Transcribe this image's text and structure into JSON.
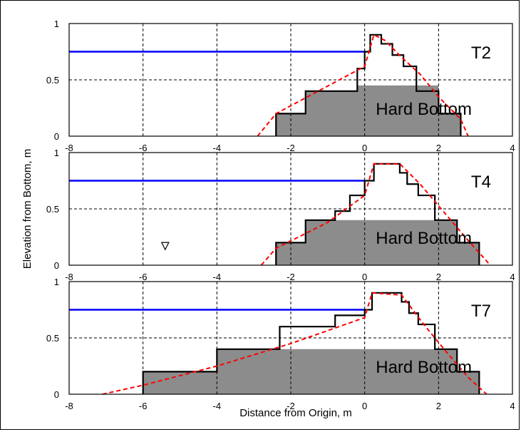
{
  "chart_data": {
    "type": "line",
    "xlabel": "Distance from Origin, m",
    "ylabel": "Elevation from Bottom, m",
    "xlim": [
      -8,
      4
    ],
    "ylim": [
      0,
      1
    ],
    "xticks": [
      "-8",
      "-6",
      "-4",
      "-2",
      "0",
      "2",
      "4"
    ],
    "yticks": [
      "0",
      "0.5",
      "1"
    ],
    "grid": "dashed",
    "colors": {
      "water_level": "#0000ff",
      "profile": "#000000",
      "fit": "#ff0000",
      "hard_bottom": "#8c8c8c"
    },
    "panels": [
      {
        "label": "T2",
        "hard_bottom_label": "Hard Bottom",
        "water_level": {
          "x": [
            -8,
            0
          ],
          "y": [
            0.75,
            0.75
          ]
        },
        "hard_bottom": {
          "x": [
            -2.4,
            -1.6,
            -1.6,
            -0.2,
            -0.2,
            2.0,
            2.0,
            2.6,
            2.6
          ],
          "y": [
            0.2,
            0.2,
            0.4,
            0.4,
            0.45,
            0.45,
            0.2,
            0.2,
            0
          ]
        },
        "profile": {
          "x": [
            -2.4,
            -2.4,
            -1.6,
            -1.6,
            -0.2,
            -0.2,
            0.0,
            0.0,
            0.15,
            0.15,
            0.45,
            0.45,
            0.75,
            0.75,
            1.05,
            1.05,
            1.4,
            1.4,
            2.0,
            2.0,
            2.6,
            2.6
          ],
          "y": [
            0,
            0.2,
            0.2,
            0.4,
            0.4,
            0.6,
            0.6,
            0.75,
            0.75,
            0.9,
            0.9,
            0.82,
            0.82,
            0.72,
            0.72,
            0.62,
            0.62,
            0.4,
            0.4,
            0.2,
            0.2,
            0
          ]
        },
        "fit": {
          "x": [
            -2.9,
            -2.4,
            0.0,
            0.25,
            0.55,
            1.0,
            1.5,
            2.0,
            2.6,
            2.8
          ],
          "y": [
            0,
            0.2,
            0.62,
            0.9,
            0.85,
            0.7,
            0.55,
            0.35,
            0.15,
            0
          ]
        },
        "triangle": false
      },
      {
        "label": "T4",
        "hard_bottom_label": "Hard Bottom",
        "water_level": {
          "x": [
            -8,
            0
          ],
          "y": [
            0.75,
            0.75
          ]
        },
        "hard_bottom": {
          "x": [
            -2.4,
            -1.6,
            -1.6,
            1.9,
            1.9,
            2.5,
            2.5,
            3.1,
            3.1
          ],
          "y": [
            0.2,
            0.2,
            0.4,
            0.4,
            0.4,
            0.4,
            0.2,
            0.2,
            0
          ]
        },
        "profile": {
          "x": [
            -2.4,
            -2.4,
            -1.6,
            -1.6,
            -0.8,
            -0.8,
            -0.4,
            -0.4,
            0.0,
            0.0,
            0.25,
            0.25,
            0.95,
            0.95,
            1.15,
            1.15,
            1.45,
            1.45,
            1.9,
            1.9,
            2.5,
            2.5,
            3.1,
            3.1
          ],
          "y": [
            0,
            0.2,
            0.2,
            0.4,
            0.4,
            0.48,
            0.48,
            0.62,
            0.62,
            0.75,
            0.75,
            0.9,
            0.9,
            0.82,
            0.82,
            0.72,
            0.72,
            0.62,
            0.62,
            0.4,
            0.4,
            0.2,
            0.2,
            0
          ]
        },
        "fit": {
          "x": [
            -2.8,
            -2.4,
            -1.0,
            0.0,
            0.25,
            0.95,
            1.5,
            2.2,
            2.8,
            3.4
          ],
          "y": [
            0,
            0.15,
            0.38,
            0.62,
            0.9,
            0.9,
            0.72,
            0.45,
            0.22,
            0
          ]
        },
        "triangle": true
      },
      {
        "label": "T7",
        "hard_bottom_label": "Hard Bottom",
        "water_level": {
          "x": [
            -8,
            0
          ],
          "y": [
            0.75,
            0.75
          ]
        },
        "hard_bottom": {
          "x": [
            -6.0,
            -4.0,
            -4.0,
            2.5,
            2.5,
            3.1,
            3.1
          ],
          "y": [
            0.2,
            0.2,
            0.4,
            0.4,
            0.2,
            0.2,
            0
          ]
        },
        "profile": {
          "x": [
            -6.0,
            -6.0,
            -4.0,
            -4.0,
            -2.3,
            -2.3,
            -0.8,
            -0.8,
            0.0,
            0.0,
            0.2,
            0.2,
            1.0,
            1.0,
            1.2,
            1.2,
            1.45,
            1.45,
            1.9,
            1.9,
            2.5,
            2.5,
            3.1,
            3.1
          ],
          "y": [
            0,
            0.2,
            0.2,
            0.4,
            0.4,
            0.6,
            0.6,
            0.7,
            0.7,
            0.75,
            0.75,
            0.9,
            0.9,
            0.82,
            0.82,
            0.72,
            0.72,
            0.62,
            0.62,
            0.4,
            0.4,
            0.2,
            0.2,
            0
          ]
        },
        "fit": {
          "x": [
            -7.1,
            -6.0,
            -4.0,
            -2.0,
            0.0,
            0.2,
            1.0,
            1.6,
            2.2,
            2.8,
            3.3
          ],
          "y": [
            0,
            0.08,
            0.25,
            0.45,
            0.68,
            0.9,
            0.88,
            0.62,
            0.38,
            0.15,
            0
          ]
        },
        "triangle": false
      }
    ]
  }
}
